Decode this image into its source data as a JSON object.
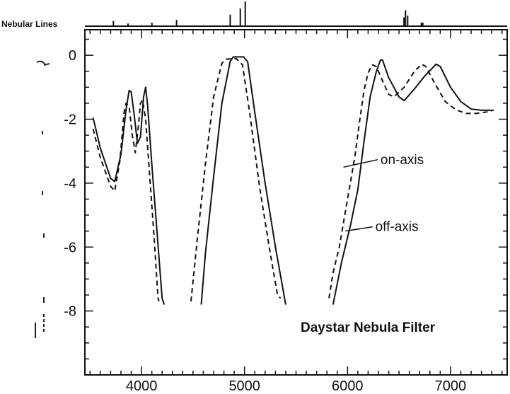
{
  "chart_data": {
    "type": "line",
    "title": "Daystar Nebula Filter",
    "nebular_lines_label": "Nebular Lines",
    "xlabel": "",
    "ylabel": "",
    "xlim": [
      3450,
      7550
    ],
    "ylim": [
      -10,
      0.8
    ],
    "x_ticks": [
      4000,
      5000,
      6000,
      7000
    ],
    "y_ticks": [
      0,
      -2,
      -4,
      -6,
      -8
    ],
    "x_tick_labels": [
      "4000",
      "5000",
      "6000",
      "7000"
    ],
    "y_tick_labels": [
      "0",
      "-2",
      "-4",
      "-6",
      "-8"
    ],
    "annotations": [
      {
        "text": "on-axis",
        "series": "on-axis",
        "x": 5960,
        "y": -3.5,
        "text_x": 6320,
        "text_y": -3.4
      },
      {
        "text": "off-axis",
        "series": "off-axis",
        "x": 5980,
        "y": -5.5,
        "text_x": 6270,
        "text_y": -5.5
      }
    ],
    "nebular_lines": [
      {
        "x": 3727,
        "h": 0.3
      },
      {
        "x": 3869,
        "h": 0.15
      },
      {
        "x": 4101,
        "h": 0.2
      },
      {
        "x": 4340,
        "h": 0.35
      },
      {
        "x": 4861,
        "h": 0.65
      },
      {
        "x": 4959,
        "h": 1.0
      },
      {
        "x": 5007,
        "h": 1.4
      },
      {
        "x": 6548,
        "h": 0.5
      },
      {
        "x": 6563,
        "h": 0.9
      },
      {
        "x": 6584,
        "h": 0.6
      },
      {
        "x": 6717,
        "h": 0.2
      },
      {
        "x": 6731,
        "h": 0.2
      }
    ],
    "series": [
      {
        "name": "on-axis",
        "style": "solid",
        "segments": [
          [
            [
              3530,
              -1.95
            ],
            [
              3600,
              -2.9
            ],
            [
              3700,
              -3.85
            ],
            [
              3740,
              -3.95
            ],
            [
              3800,
              -3.1
            ],
            [
              3850,
              -1.7
            ],
            [
              3880,
              -1.1
            ],
            [
              3900,
              -1.15
            ],
            [
              3930,
              -1.9
            ],
            [
              3960,
              -2.75
            ],
            [
              3990,
              -2.55
            ],
            [
              4020,
              -1.3
            ],
            [
              4040,
              -1.0
            ],
            [
              4060,
              -1.6
            ],
            [
              4100,
              -3.4
            ],
            [
              4150,
              -5.5
            ],
            [
              4200,
              -7.6
            ],
            [
              4220,
              -7.8
            ]
          ],
          [
            [
              4580,
              -7.8
            ],
            [
              4620,
              -6.2
            ],
            [
              4700,
              -3.8
            ],
            [
              4780,
              -1.5
            ],
            [
              4860,
              -0.2
            ],
            [
              4890,
              -0.05
            ],
            [
              4990,
              -0.05
            ],
            [
              5030,
              -0.2
            ],
            [
              5100,
              -1.8
            ],
            [
              5200,
              -4.0
            ],
            [
              5300,
              -6.0
            ],
            [
              5400,
              -7.8
            ]
          ],
          [
            [
              5860,
              -7.8
            ],
            [
              5940,
              -6.5
            ],
            [
              6030,
              -5.3
            ],
            [
              6100,
              -4.2
            ],
            [
              6160,
              -2.7
            ],
            [
              6220,
              -1.3
            ],
            [
              6280,
              -0.5
            ],
            [
              6320,
              -0.15
            ],
            [
              6340,
              -0.15
            ],
            [
              6400,
              -0.7
            ],
            [
              6500,
              -1.3
            ],
            [
              6550,
              -1.42
            ],
            [
              6650,
              -1.05
            ],
            [
              6750,
              -0.65
            ],
            [
              6860,
              -0.28
            ],
            [
              6900,
              -0.35
            ],
            [
              7000,
              -1.0
            ],
            [
              7100,
              -1.45
            ],
            [
              7200,
              -1.68
            ],
            [
              7300,
              -1.72
            ],
            [
              7420,
              -1.72
            ]
          ]
        ]
      },
      {
        "name": "off-axis",
        "style": "dashed",
        "segments": [
          [
            [
              3530,
              -2.3
            ],
            [
              3600,
              -3.2
            ],
            [
              3700,
              -4.1
            ],
            [
              3740,
              -4.25
            ],
            [
              3790,
              -3.3
            ],
            [
              3830,
              -1.8
            ],
            [
              3850,
              -1.5
            ],
            [
              3880,
              -1.6
            ],
            [
              3910,
              -2.5
            ],
            [
              3940,
              -3.05
            ],
            [
              3970,
              -2.2
            ],
            [
              3990,
              -1.5
            ],
            [
              4010,
              -1.4
            ],
            [
              4040,
              -2.0
            ],
            [
              4080,
              -3.8
            ],
            [
              4120,
              -5.6
            ],
            [
              4160,
              -7.6
            ],
            [
              4170,
              -7.7
            ]
          ],
          [
            [
              4480,
              -7.7
            ],
            [
              4540,
              -5.8
            ],
            [
              4620,
              -3.4
            ],
            [
              4700,
              -1.3
            ],
            [
              4780,
              -0.25
            ],
            [
              4820,
              -0.12
            ],
            [
              4920,
              -0.1
            ],
            [
              4980,
              -0.3
            ],
            [
              5050,
              -1.8
            ],
            [
              5150,
              -4.2
            ],
            [
              5250,
              -6.2
            ],
            [
              5320,
              -7.5
            ],
            [
              5350,
              -7.6
            ]
          ],
          [
            [
              5820,
              -7.6
            ],
            [
              5860,
              -6.8
            ],
            [
              5920,
              -6.0
            ],
            [
              6000,
              -4.5
            ],
            [
              6070,
              -3.2
            ],
            [
              6120,
              -2.0
            ],
            [
              6160,
              -1.1
            ],
            [
              6200,
              -0.55
            ],
            [
              6240,
              -0.3
            ],
            [
              6280,
              -0.35
            ],
            [
              6340,
              -0.8
            ],
            [
              6400,
              -1.22
            ],
            [
              6450,
              -1.3
            ],
            [
              6550,
              -1.0
            ],
            [
              6650,
              -0.5
            ],
            [
              6720,
              -0.28
            ],
            [
              6760,
              -0.35
            ],
            [
              6850,
              -0.9
            ],
            [
              6950,
              -1.45
            ],
            [
              7050,
              -1.7
            ],
            [
              7150,
              -1.82
            ],
            [
              7250,
              -1.82
            ],
            [
              7400,
              -1.75
            ]
          ]
        ]
      }
    ],
    "grid": false,
    "legend": "none"
  }
}
